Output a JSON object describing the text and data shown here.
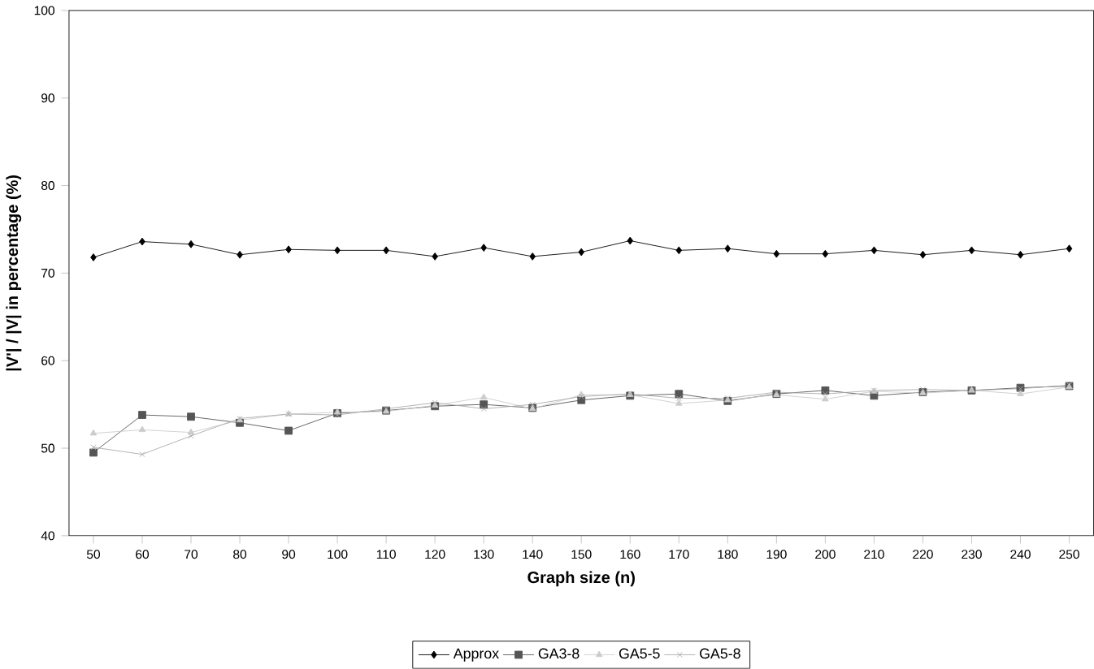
{
  "chart_data": {
    "type": "line",
    "xlabel": "Graph size (n)",
    "ylabel": "|V'| / |V| in percentage (%)",
    "categories": [
      "50",
      "60",
      "70",
      "80",
      "90",
      "100",
      "110",
      "120",
      "130",
      "140",
      "150",
      "160",
      "170",
      "180",
      "190",
      "200",
      "210",
      "220",
      "230",
      "240",
      "250"
    ],
    "ylim": [
      40,
      100
    ],
    "yticks": [
      40,
      50,
      60,
      70,
      80,
      90,
      100
    ],
    "grid": false,
    "legend": "bottom",
    "series": [
      {
        "name": "Approx",
        "color": "#000000",
        "marker": "diamond",
        "values": [
          71.8,
          73.6,
          73.3,
          72.1,
          72.7,
          72.6,
          72.6,
          71.9,
          72.9,
          71.9,
          72.4,
          73.7,
          72.6,
          72.8,
          72.2,
          72.2,
          72.6,
          72.1,
          72.6,
          72.1,
          72.8
        ]
      },
      {
        "name": "GA3-8",
        "color": "#555555",
        "marker": "square",
        "values": [
          49.5,
          53.8,
          53.6,
          52.9,
          52.0,
          54.0,
          54.3,
          54.8,
          55.0,
          54.6,
          55.5,
          56.0,
          56.2,
          55.4,
          56.2,
          56.6,
          56.0,
          56.4,
          56.6,
          56.9,
          57.1
        ]
      },
      {
        "name": "GA5-5",
        "color": "#cccccc",
        "marker": "triangle",
        "values": [
          51.7,
          52.1,
          51.8,
          53.2,
          53.9,
          54.1,
          54.2,
          54.9,
          55.8,
          54.5,
          56.1,
          56.1,
          55.1,
          55.5,
          56.1,
          55.6,
          56.5,
          56.3,
          56.6,
          56.2,
          57.0
        ]
      },
      {
        "name": "GA5-8",
        "color": "#aaaaaa",
        "marker": "cross",
        "values": [
          50.1,
          49.3,
          51.4,
          53.4,
          53.9,
          53.8,
          54.5,
          55.2,
          54.5,
          55.0,
          55.9,
          56.2,
          55.7,
          55.7,
          56.4,
          56.2,
          56.6,
          56.7,
          56.6,
          56.8,
          57.2
        ]
      }
    ]
  }
}
